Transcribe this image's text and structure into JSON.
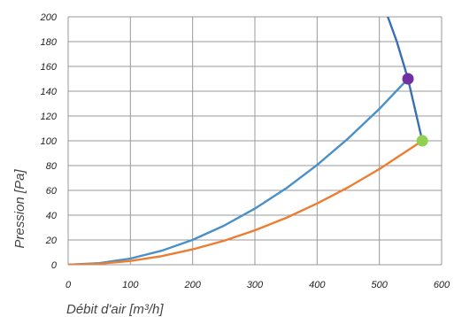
{
  "chart_data": {
    "type": "line",
    "xlabel": "Débit d'air [m³/h]",
    "ylabel": "Pression [Pa]",
    "xlim": [
      0,
      600
    ],
    "ylim": [
      0,
      200
    ],
    "x_ticks": [
      "0",
      "100",
      "200",
      "300",
      "400",
      "500",
      "600"
    ],
    "y_ticks": [
      "0",
      "20",
      "40",
      "60",
      "80",
      "100",
      "120",
      "140",
      "160",
      "180",
      "200"
    ],
    "grid": true,
    "series": [
      {
        "color": "#4a90c8",
        "x": [
          0,
          50,
          100,
          150,
          200,
          250,
          300,
          350,
          400,
          450,
          500,
          546
        ],
        "y": [
          0,
          1.3,
          5,
          11.3,
          20.1,
          31.4,
          45.3,
          61.6,
          80.5,
          101.9,
          125.8,
          150
        ]
      },
      {
        "color": "#ed7d31",
        "x": [
          0,
          50,
          100,
          150,
          200,
          250,
          300,
          350,
          400,
          450,
          500,
          569
        ],
        "y": [
          0,
          0.8,
          3.1,
          6.9,
          12.4,
          19.3,
          27.8,
          37.8,
          49.4,
          62.5,
          77.2,
          100
        ]
      },
      {
        "color": "#3a6fb5",
        "x": [
          510,
          528,
          546,
          569
        ],
        "y": [
          205,
          180,
          150,
          100
        ]
      }
    ],
    "points": [
      {
        "x": 546,
        "y": 150,
        "color": "#7030a0"
      },
      {
        "x": 569,
        "y": 100,
        "color": "#92d050"
      }
    ]
  }
}
